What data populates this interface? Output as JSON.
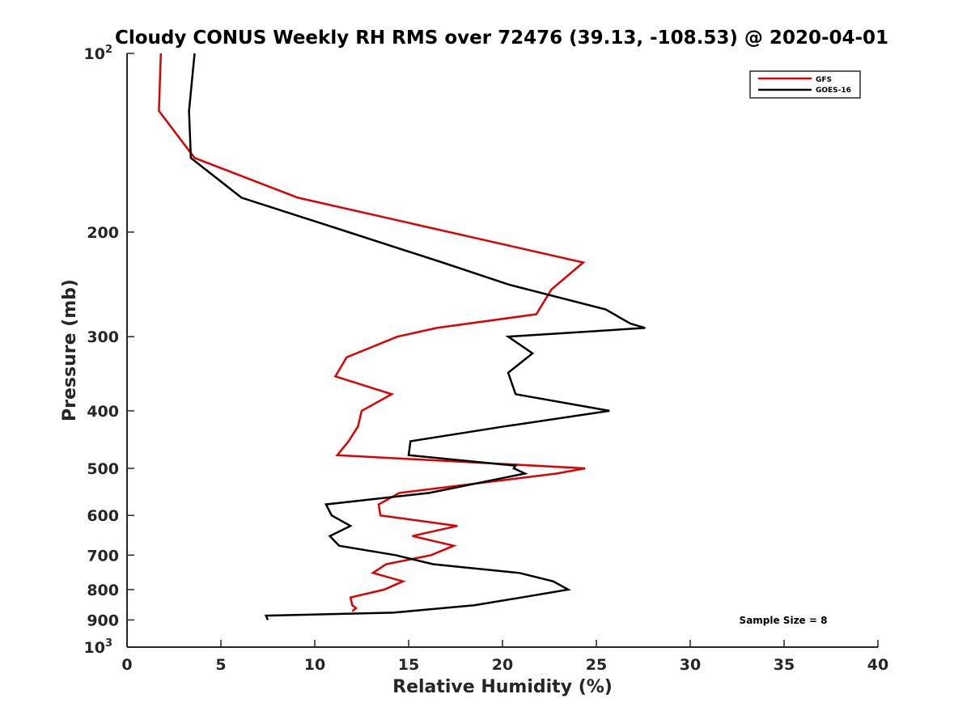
{
  "chart_data": {
    "type": "line",
    "title": "Cloudy CONUS Weekly RH RMS over 72476 (39.13, -108.53) @ 2020-04-01",
    "xlabel": "Relative Humidity (%)",
    "ylabel": "Pressure (mb)",
    "xlim": [
      0,
      40
    ],
    "ylim": [
      100,
      1000
    ],
    "y_scale": "log",
    "y_reversed": true,
    "grid": false,
    "legend_position": "top-right",
    "x_ticks": [
      0,
      5,
      10,
      15,
      20,
      25,
      30,
      35,
      40
    ],
    "y_ticks": [
      {
        "value": 100,
        "label": "10",
        "sup": "2"
      },
      {
        "value": 200,
        "label": "200"
      },
      {
        "value": 300,
        "label": "300"
      },
      {
        "value": 400,
        "label": "400"
      },
      {
        "value": 500,
        "label": "500"
      },
      {
        "value": 600,
        "label": "600"
      },
      {
        "value": 700,
        "label": "700"
      },
      {
        "value": 800,
        "label": "800"
      },
      {
        "value": 900,
        "label": "900"
      },
      {
        "value": 1000,
        "label": "10",
        "sup": "3"
      }
    ],
    "annotation": "Sample Size = 8",
    "series": [
      {
        "name": "GFS",
        "color": "#dd0000",
        "points": [
          [
            1.8,
            100
          ],
          [
            1.7,
            125
          ],
          [
            3.6,
            150
          ],
          [
            9.1,
            175
          ],
          [
            24.3,
            225
          ],
          [
            22.6,
            250
          ],
          [
            21.8,
            275
          ],
          [
            16.5,
            290
          ],
          [
            14.4,
            300
          ],
          [
            11.7,
            325
          ],
          [
            11.1,
            350
          ],
          [
            14.1,
            375
          ],
          [
            12.5,
            400
          ],
          [
            12.3,
            425
          ],
          [
            11.8,
            450
          ],
          [
            11.2,
            475
          ],
          [
            24.4,
            500
          ],
          [
            22.9,
            510
          ],
          [
            14.5,
            550
          ],
          [
            13.4,
            575
          ],
          [
            13.5,
            600
          ],
          [
            17.6,
            625
          ],
          [
            15.2,
            650
          ],
          [
            17.4,
            675
          ],
          [
            16.2,
            700
          ],
          [
            13.8,
            725
          ],
          [
            13.1,
            750
          ],
          [
            14.7,
            775
          ],
          [
            13.7,
            800
          ],
          [
            11.9,
            825
          ],
          [
            12.0,
            850
          ],
          [
            12.2,
            860
          ],
          [
            12.0,
            870
          ]
        ]
      },
      {
        "name": "GOES-16",
        "color": "#000000",
        "points": [
          [
            3.6,
            100
          ],
          [
            3.3,
            125
          ],
          [
            3.4,
            150
          ],
          [
            6.1,
            175
          ],
          [
            11.8,
            200
          ],
          [
            16.8,
            225
          ],
          [
            20.3,
            245
          ],
          [
            25.5,
            270
          ],
          [
            26.8,
            285
          ],
          [
            27.6,
            290
          ],
          [
            20.3,
            300
          ],
          [
            21.6,
            320
          ],
          [
            20.3,
            345
          ],
          [
            20.7,
            375
          ],
          [
            25.7,
            400
          ],
          [
            20.1,
            425
          ],
          [
            15.1,
            450
          ],
          [
            15.0,
            475
          ],
          [
            20.7,
            495
          ],
          [
            20.6,
            500
          ],
          [
            21.2,
            510
          ],
          [
            16.1,
            550
          ],
          [
            10.6,
            575
          ],
          [
            10.9,
            600
          ],
          [
            11.9,
            625
          ],
          [
            10.8,
            650
          ],
          [
            11.3,
            675
          ],
          [
            14.3,
            700
          ],
          [
            16.3,
            725
          ],
          [
            20.9,
            750
          ],
          [
            22.7,
            775
          ],
          [
            23.5,
            800
          ],
          [
            21.0,
            825
          ],
          [
            18.5,
            850
          ],
          [
            14.2,
            875
          ],
          [
            7.4,
            885
          ],
          [
            7.5,
            900
          ]
        ]
      }
    ]
  }
}
